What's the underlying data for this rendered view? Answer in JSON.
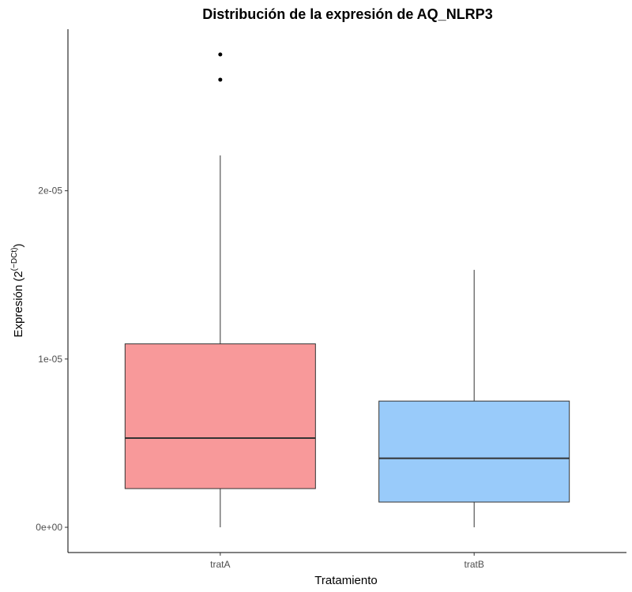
{
  "chart_data": {
    "type": "boxplot",
    "title": "Distribución de la expresión de AQ_NLRP3",
    "xlabel": "Tratamiento",
    "ylabel_main": "Expresión (2",
    "ylabel_sup": "(−DCt)",
    "ylabel_end": ")",
    "ylim": [
      -1.5e-06,
      2.96e-05
    ],
    "y_ticks": [
      {
        "value": 0,
        "label": "0e+00"
      },
      {
        "value": 1e-05,
        "label": "1e-05"
      },
      {
        "value": 2e-05,
        "label": "2e-05"
      }
    ],
    "categories": [
      "tratA",
      "tratB"
    ],
    "series": [
      {
        "category": "tratA",
        "color": "#f8999a",
        "whisker_low": 0,
        "q1": 2.3e-06,
        "median": 5.3e-06,
        "q3": 1.09e-05,
        "whisker_high": 2.21e-05,
        "outliers": [
          2.66e-05,
          2.81e-05
        ]
      },
      {
        "category": "tratB",
        "color": "#99cbfa",
        "whisker_low": 0,
        "q1": 1.5e-06,
        "median": 4.1e-06,
        "q3": 7.5e-06,
        "whisker_high": 1.53e-05,
        "outliers": []
      }
    ]
  }
}
